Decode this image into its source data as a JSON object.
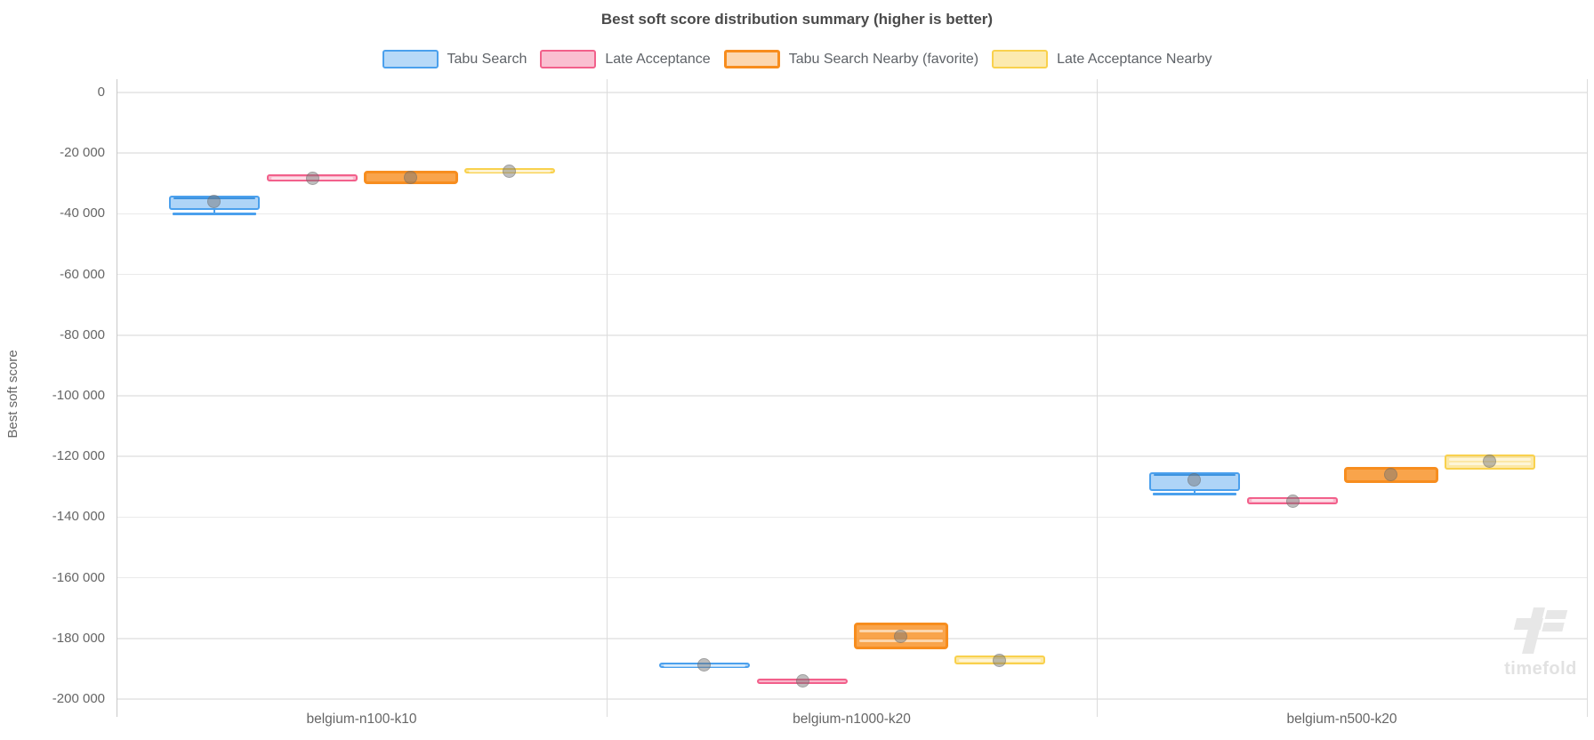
{
  "watermark": {
    "text": "timefold"
  },
  "chart_data": {
    "type": "boxplot",
    "title": "Best soft score distribution summary (higher is better)",
    "xlabel": "",
    "ylabel": "Best soft score",
    "ylim": [
      -200000,
      0
    ],
    "grid": true,
    "legend_position": "top",
    "y_ticks": [
      {
        "value": 0,
        "label": "0"
      },
      {
        "value": -20000,
        "label": "-20 000"
      },
      {
        "value": -40000,
        "label": "-40 000"
      },
      {
        "value": -60000,
        "label": "-60 000"
      },
      {
        "value": -80000,
        "label": "-80 000"
      },
      {
        "value": -100000,
        "label": "-100 000"
      },
      {
        "value": -120000,
        "label": "-120 000"
      },
      {
        "value": -140000,
        "label": "-140 000"
      },
      {
        "value": -160000,
        "label": "-160 000"
      },
      {
        "value": -180000,
        "label": "-180 000"
      },
      {
        "value": -200000,
        "label": "-200 000"
      }
    ],
    "categories": [
      "belgium-n100-k10",
      "belgium-n1000-k20",
      "belgium-n500-k20"
    ],
    "series": [
      {
        "name": "Tabu Search",
        "favorite": false,
        "color_border": "#4BA0ED",
        "color_fill": "rgba(75,160,237,0.45)",
        "color_legend_fill": "rgba(75,160,237,0.40)",
        "color_dark": "#3E93DF",
        "values": [
          {
            "q3": -33900,
            "q1": -38600,
            "mean": -36000,
            "whisker_low": -39900,
            "inner_lines": [
              {
                "value": -34800,
                "style": "dark"
              }
            ]
          },
          {
            "q3": -188000,
            "q1": -189700,
            "mean": -188800,
            "inner_lines": [
              {
                "value": -188600,
                "style": "light"
              }
            ]
          },
          {
            "q3": -125200,
            "q1": -131300,
            "mean": -127600,
            "whisker_low": -132300,
            "inner_lines": [
              {
                "value": -126000,
                "style": "dark"
              }
            ]
          }
        ]
      },
      {
        "name": "Late Acceptance",
        "favorite": false,
        "color_border": "#F2608B",
        "color_fill": "rgba(242,96,139,0.45)",
        "color_legend_fill": "rgba(242,96,139,0.40)",
        "color_dark": "#E8517E",
        "values": [
          {
            "q3": -27000,
            "q1": -29400,
            "mean": -28400,
            "inner_lines": [
              {
                "value": -28200,
                "style": "light"
              }
            ]
          },
          {
            "q3": -193400,
            "q1": -194900,
            "mean": -194100,
            "inner_lines": []
          },
          {
            "q3": -133300,
            "q1": -135900,
            "mean": -134700,
            "inner_lines": [
              {
                "value": -134000,
                "style": "light"
              }
            ]
          }
        ]
      },
      {
        "name": "Tabu Search Nearby (favorite)",
        "favorite": true,
        "color_border": "#F78D1E",
        "color_fill": "rgba(247,141,30,0.80)",
        "color_legend_fill": "rgba(247,141,30,0.35)",
        "color_dark": "#EF830F",
        "values": [
          {
            "q3": -25800,
            "q1": -30100,
            "mean": -28000,
            "inner_lines": []
          },
          {
            "q3": -174700,
            "q1": -183700,
            "mean": -179200,
            "inner_lines": [
              {
                "value": -177600,
                "style": "light"
              },
              {
                "value": -180900,
                "style": "light"
              }
            ]
          },
          {
            "q3": -123500,
            "q1": -128700,
            "mean": -125900,
            "inner_lines": []
          }
        ]
      },
      {
        "name": "Late Acceptance Nearby",
        "favorite": false,
        "color_border": "#F9D14D",
        "color_fill": "rgba(249,209,77,0.50)",
        "color_legend_fill": "rgba(249,209,77,0.45)",
        "color_dark": "#F2C63A",
        "values": [
          {
            "q3": -25000,
            "q1": -26800,
            "mean": -25900,
            "inner_lines": [
              {
                "value": -25900,
                "style": "light"
              }
            ]
          },
          {
            "q3": -185600,
            "q1": -188500,
            "mean": -187100,
            "inner_lines": [
              {
                "value": -187100,
                "style": "light"
              }
            ]
          },
          {
            "q3": -119300,
            "q1": -124300,
            "mean": -121700,
            "inner_lines": [
              {
                "value": -121000,
                "style": "light"
              },
              {
                "value": -122500,
                "style": "light"
              }
            ]
          }
        ]
      }
    ]
  }
}
